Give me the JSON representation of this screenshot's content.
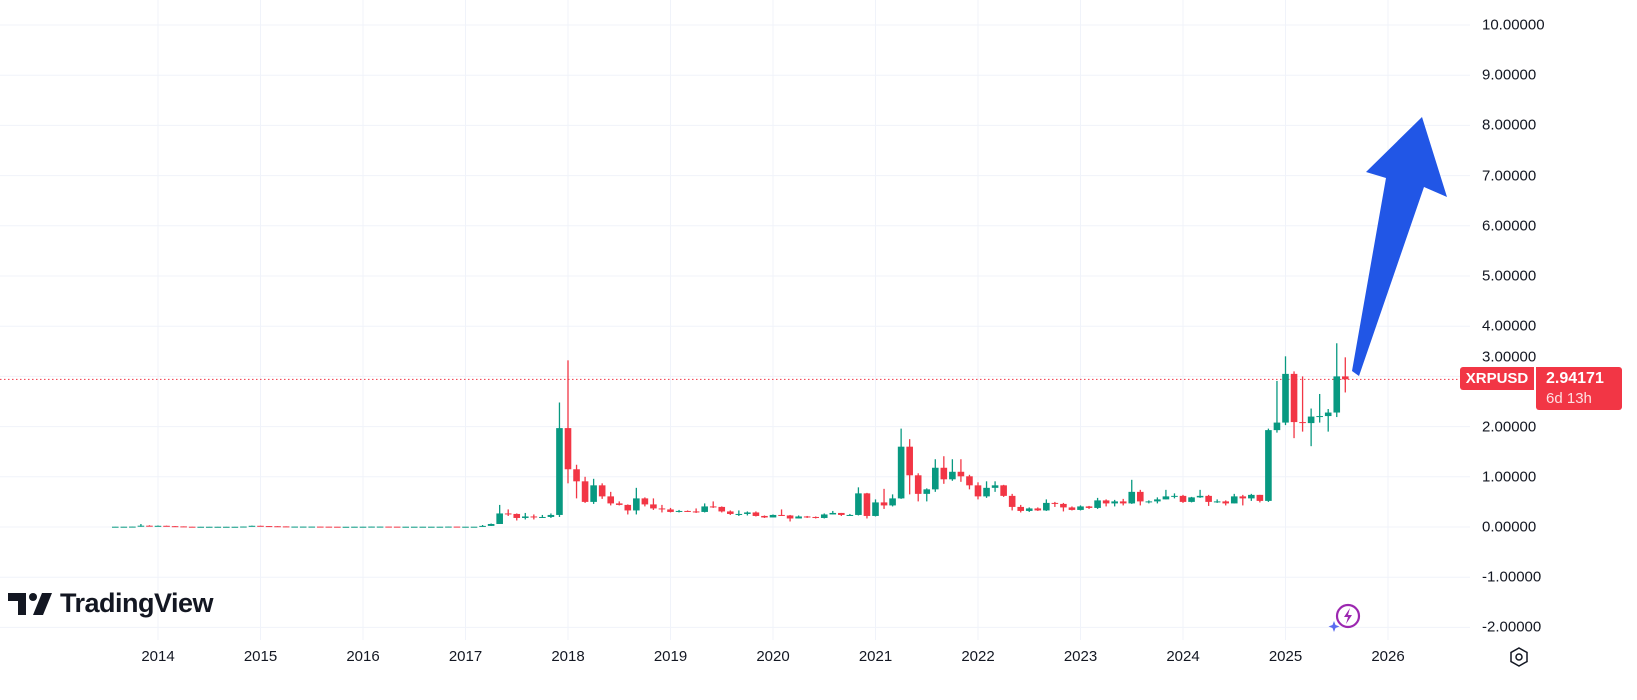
{
  "symbol": "XRPUSD",
  "last_price": "2.94171",
  "countdown": "6d 13h",
  "branding": {
    "logo_text": "TradingView"
  },
  "colors": {
    "up": "#089981",
    "down": "#f23645",
    "arrow": "#2156e6",
    "grid": "#f0f3fa"
  },
  "icons": {
    "settings": "gear-icon",
    "assistant": "sparkle-bolt-icon"
  },
  "chart_data": {
    "type": "candlestick",
    "interval": "monthly",
    "grid": true,
    "y_axis_position": "right",
    "ylim": [
      -2,
      10
    ],
    "y_ticks": [
      "10.00000",
      "9.00000",
      "8.00000",
      "7.00000",
      "6.00000",
      "5.00000",
      "4.00000",
      "3.00000",
      "2.00000",
      "1.00000",
      "0.00000",
      "-1.00000",
      "-2.00000"
    ],
    "x_ticks": [
      "2014",
      "2015",
      "2016",
      "2017",
      "2018",
      "2019",
      "2020",
      "2021",
      "2022",
      "2023",
      "2024",
      "2025",
      "2026"
    ],
    "annotation": "upward arrow drawing from last candle toward ~8.0",
    "candles": [
      [
        "2013-08",
        0.005,
        0.006,
        0.004,
        0.006
      ],
      [
        "2013-09",
        0.006,
        0.007,
        0.005,
        0.006
      ],
      [
        "2013-10",
        0.006,
        0.009,
        0.005,
        0.008
      ],
      [
        "2013-11",
        0.008,
        0.06,
        0.007,
        0.026
      ],
      [
        "2013-12",
        0.026,
        0.035,
        0.015,
        0.023
      ],
      [
        "2014-01",
        0.023,
        0.03,
        0.02,
        0.024
      ],
      [
        "2014-02",
        0.024,
        0.026,
        0.014,
        0.016
      ],
      [
        "2014-03",
        0.016,
        0.018,
        0.011,
        0.012
      ],
      [
        "2014-04",
        0.012,
        0.012,
        0.005,
        0.006
      ],
      [
        "2014-05",
        0.006,
        0.007,
        0.004,
        0.005
      ],
      [
        "2014-06",
        0.005,
        0.006,
        0.004,
        0.005
      ],
      [
        "2014-07",
        0.005,
        0.006,
        0.004,
        0.005
      ],
      [
        "2014-08",
        0.005,
        0.006,
        0.004,
        0.005
      ],
      [
        "2014-09",
        0.005,
        0.006,
        0.004,
        0.005
      ],
      [
        "2014-10",
        0.005,
        0.006,
        0.004,
        0.005
      ],
      [
        "2014-11",
        0.005,
        0.01,
        0.005,
        0.009
      ],
      [
        "2014-12",
        0.009,
        0.027,
        0.009,
        0.024
      ],
      [
        "2015-01",
        0.024,
        0.026,
        0.014,
        0.018
      ],
      [
        "2015-02",
        0.018,
        0.019,
        0.013,
        0.015
      ],
      [
        "2015-03",
        0.015,
        0.016,
        0.011,
        0.012
      ],
      [
        "2015-04",
        0.012,
        0.012,
        0.008,
        0.008
      ],
      [
        "2015-05",
        0.008,
        0.009,
        0.007,
        0.008
      ],
      [
        "2015-06",
        0.008,
        0.009,
        0.007,
        0.008
      ],
      [
        "2015-07",
        0.008,
        0.009,
        0.007,
        0.008
      ],
      [
        "2015-08",
        0.008,
        0.008,
        0.006,
        0.007
      ],
      [
        "2015-09",
        0.007,
        0.008,
        0.006,
        0.006
      ],
      [
        "2015-10",
        0.006,
        0.006,
        0.005,
        0.005
      ],
      [
        "2015-11",
        0.005,
        0.006,
        0.005,
        0.005
      ],
      [
        "2015-12",
        0.005,
        0.007,
        0.005,
        0.006
      ],
      [
        "2016-01",
        0.006,
        0.007,
        0.005,
        0.006
      ],
      [
        "2016-02",
        0.006,
        0.01,
        0.006,
        0.008
      ],
      [
        "2016-03",
        0.008,
        0.009,
        0.007,
        0.008
      ],
      [
        "2016-04",
        0.008,
        0.008,
        0.006,
        0.007
      ],
      [
        "2016-05",
        0.007,
        0.007,
        0.006,
        0.006
      ],
      [
        "2016-06",
        0.006,
        0.007,
        0.006,
        0.006
      ],
      [
        "2016-07",
        0.006,
        0.007,
        0.006,
        0.006
      ],
      [
        "2016-08",
        0.006,
        0.007,
        0.006,
        0.006
      ],
      [
        "2016-09",
        0.006,
        0.007,
        0.006,
        0.006
      ],
      [
        "2016-10",
        0.006,
        0.007,
        0.006,
        0.006
      ],
      [
        "2016-11",
        0.006,
        0.01,
        0.006,
        0.008
      ],
      [
        "2016-12",
        0.008,
        0.008,
        0.006,
        0.006
      ],
      [
        "2017-01",
        0.006,
        0.007,
        0.006,
        0.006
      ],
      [
        "2017-02",
        0.006,
        0.007,
        0.006,
        0.006
      ],
      [
        "2017-03",
        0.006,
        0.04,
        0.006,
        0.022
      ],
      [
        "2017-04",
        0.022,
        0.07,
        0.02,
        0.06
      ],
      [
        "2017-05",
        0.06,
        0.44,
        0.06,
        0.27
      ],
      [
        "2017-06",
        0.27,
        0.35,
        0.22,
        0.26
      ],
      [
        "2017-07",
        0.26,
        0.27,
        0.13,
        0.18
      ],
      [
        "2017-08",
        0.18,
        0.28,
        0.15,
        0.21
      ],
      [
        "2017-09",
        0.21,
        0.25,
        0.15,
        0.19
      ],
      [
        "2017-10",
        0.19,
        0.24,
        0.18,
        0.2
      ],
      [
        "2017-11",
        0.2,
        0.27,
        0.18,
        0.24
      ],
      [
        "2017-12",
        0.24,
        2.48,
        0.2,
        1.97
      ],
      [
        "2018-01",
        1.97,
        3.32,
        0.87,
        1.15
      ],
      [
        "2018-02",
        1.15,
        1.24,
        0.57,
        0.91
      ],
      [
        "2018-03",
        0.91,
        1.0,
        0.48,
        0.5
      ],
      [
        "2018-04",
        0.5,
        0.96,
        0.46,
        0.83
      ],
      [
        "2018-05",
        0.83,
        0.87,
        0.56,
        0.61
      ],
      [
        "2018-06",
        0.61,
        0.7,
        0.43,
        0.47
      ],
      [
        "2018-07",
        0.47,
        0.51,
        0.43,
        0.44
      ],
      [
        "2018-08",
        0.44,
        0.45,
        0.25,
        0.33
      ],
      [
        "2018-09",
        0.33,
        0.78,
        0.25,
        0.57
      ],
      [
        "2018-10",
        0.57,
        0.59,
        0.41,
        0.45
      ],
      [
        "2018-11",
        0.45,
        0.57,
        0.34,
        0.37
      ],
      [
        "2018-12",
        0.37,
        0.44,
        0.29,
        0.35
      ],
      [
        "2019-01",
        0.35,
        0.38,
        0.29,
        0.3
      ],
      [
        "2019-02",
        0.3,
        0.34,
        0.29,
        0.32
      ],
      [
        "2019-03",
        0.32,
        0.33,
        0.3,
        0.31
      ],
      [
        "2019-04",
        0.31,
        0.37,
        0.28,
        0.3
      ],
      [
        "2019-05",
        0.3,
        0.47,
        0.29,
        0.41
      ],
      [
        "2019-06",
        0.41,
        0.51,
        0.38,
        0.4
      ],
      [
        "2019-07",
        0.4,
        0.41,
        0.29,
        0.31
      ],
      [
        "2019-08",
        0.31,
        0.33,
        0.24,
        0.26
      ],
      [
        "2019-09",
        0.26,
        0.33,
        0.22,
        0.26
      ],
      [
        "2019-10",
        0.26,
        0.31,
        0.23,
        0.29
      ],
      [
        "2019-11",
        0.29,
        0.31,
        0.21,
        0.22
      ],
      [
        "2019-12",
        0.22,
        0.23,
        0.18,
        0.19
      ],
      [
        "2020-01",
        0.19,
        0.25,
        0.19,
        0.24
      ],
      [
        "2020-02",
        0.24,
        0.35,
        0.22,
        0.23
      ],
      [
        "2020-03",
        0.23,
        0.24,
        0.11,
        0.17
      ],
      [
        "2020-04",
        0.17,
        0.23,
        0.17,
        0.21
      ],
      [
        "2020-05",
        0.21,
        0.22,
        0.18,
        0.2
      ],
      [
        "2020-06",
        0.2,
        0.21,
        0.17,
        0.18
      ],
      [
        "2020-07",
        0.18,
        0.27,
        0.17,
        0.25
      ],
      [
        "2020-08",
        0.25,
        0.32,
        0.25,
        0.28
      ],
      [
        "2020-09",
        0.28,
        0.28,
        0.22,
        0.24
      ],
      [
        "2020-10",
        0.24,
        0.26,
        0.23,
        0.24
      ],
      [
        "2020-11",
        0.24,
        0.79,
        0.23,
        0.67
      ],
      [
        "2020-12",
        0.67,
        0.68,
        0.17,
        0.22
      ],
      [
        "2021-01",
        0.22,
        0.55,
        0.21,
        0.49
      ],
      [
        "2021-02",
        0.49,
        0.76,
        0.36,
        0.43
      ],
      [
        "2021-03",
        0.43,
        0.65,
        0.41,
        0.57
      ],
      [
        "2021-04",
        0.57,
        1.96,
        0.56,
        1.6
      ],
      [
        "2021-05",
        1.6,
        1.75,
        0.65,
        1.03
      ],
      [
        "2021-06",
        1.03,
        1.07,
        0.51,
        0.66
      ],
      [
        "2021-07",
        0.66,
        0.77,
        0.51,
        0.75
      ],
      [
        "2021-08",
        0.75,
        1.35,
        0.7,
        1.18
      ],
      [
        "2021-09",
        1.18,
        1.41,
        0.86,
        0.95
      ],
      [
        "2021-10",
        0.95,
        1.35,
        0.92,
        1.1
      ],
      [
        "2021-11",
        1.1,
        1.35,
        0.9,
        1.01
      ],
      [
        "2021-12",
        1.01,
        1.04,
        0.75,
        0.83
      ],
      [
        "2022-01",
        0.83,
        0.89,
        0.55,
        0.61
      ],
      [
        "2022-02",
        0.61,
        0.91,
        0.58,
        0.78
      ],
      [
        "2022-03",
        0.78,
        0.91,
        0.7,
        0.83
      ],
      [
        "2022-04",
        0.83,
        0.84,
        0.6,
        0.62
      ],
      [
        "2022-05",
        0.62,
        0.66,
        0.33,
        0.4
      ],
      [
        "2022-06",
        0.4,
        0.44,
        0.29,
        0.32
      ],
      [
        "2022-07",
        0.32,
        0.39,
        0.3,
        0.37
      ],
      [
        "2022-08",
        0.37,
        0.39,
        0.32,
        0.33
      ],
      [
        "2022-09",
        0.33,
        0.55,
        0.32,
        0.48
      ],
      [
        "2022-10",
        0.48,
        0.5,
        0.4,
        0.46
      ],
      [
        "2022-11",
        0.46,
        0.48,
        0.31,
        0.39
      ],
      [
        "2022-12",
        0.39,
        0.41,
        0.33,
        0.34
      ],
      [
        "2023-01",
        0.34,
        0.43,
        0.33,
        0.41
      ],
      [
        "2023-02",
        0.41,
        0.42,
        0.36,
        0.38
      ],
      [
        "2023-03",
        0.38,
        0.58,
        0.36,
        0.53
      ],
      [
        "2023-04",
        0.53,
        0.55,
        0.41,
        0.47
      ],
      [
        "2023-05",
        0.47,
        0.54,
        0.41,
        0.51
      ],
      [
        "2023-06",
        0.51,
        0.56,
        0.43,
        0.47
      ],
      [
        "2023-07",
        0.47,
        0.94,
        0.46,
        0.7
      ],
      [
        "2023-08",
        0.7,
        0.74,
        0.43,
        0.51
      ],
      [
        "2023-09",
        0.51,
        0.53,
        0.47,
        0.51
      ],
      [
        "2023-10",
        0.51,
        0.59,
        0.47,
        0.55
      ],
      [
        "2023-11",
        0.55,
        0.74,
        0.55,
        0.61
      ],
      [
        "2023-12",
        0.61,
        0.67,
        0.57,
        0.62
      ],
      [
        "2024-01",
        0.62,
        0.64,
        0.48,
        0.5
      ],
      [
        "2024-02",
        0.5,
        0.6,
        0.49,
        0.59
      ],
      [
        "2024-03",
        0.59,
        0.74,
        0.58,
        0.62
      ],
      [
        "2024-04",
        0.62,
        0.64,
        0.42,
        0.5
      ],
      [
        "2024-05",
        0.5,
        0.55,
        0.48,
        0.51
      ],
      [
        "2024-06",
        0.51,
        0.53,
        0.43,
        0.47
      ],
      [
        "2024-07",
        0.47,
        0.66,
        0.47,
        0.61
      ],
      [
        "2024-08",
        0.61,
        0.64,
        0.43,
        0.57
      ],
      [
        "2024-09",
        0.57,
        0.66,
        0.52,
        0.64
      ],
      [
        "2024-10",
        0.64,
        0.64,
        0.49,
        0.52
      ],
      [
        "2024-11",
        0.52,
        1.96,
        0.5,
        1.93
      ],
      [
        "2024-12",
        1.93,
        2.91,
        1.88,
        2.08
      ],
      [
        "2025-01",
        2.08,
        3.4,
        2.03,
        3.05
      ],
      [
        "2025-02",
        3.05,
        3.1,
        1.77,
        2.09
      ],
      [
        "2025-03",
        2.09,
        3.0,
        1.9,
        2.07
      ],
      [
        "2025-04",
        2.07,
        2.36,
        1.61,
        2.2
      ],
      [
        "2025-05",
        2.2,
        2.65,
        2.08,
        2.21
      ],
      [
        "2025-06",
        2.21,
        2.35,
        1.9,
        2.28
      ],
      [
        "2025-07",
        2.28,
        3.66,
        2.19,
        3.0
      ],
      [
        "2025-08",
        3.0,
        3.38,
        2.68,
        2.94171
      ]
    ]
  }
}
